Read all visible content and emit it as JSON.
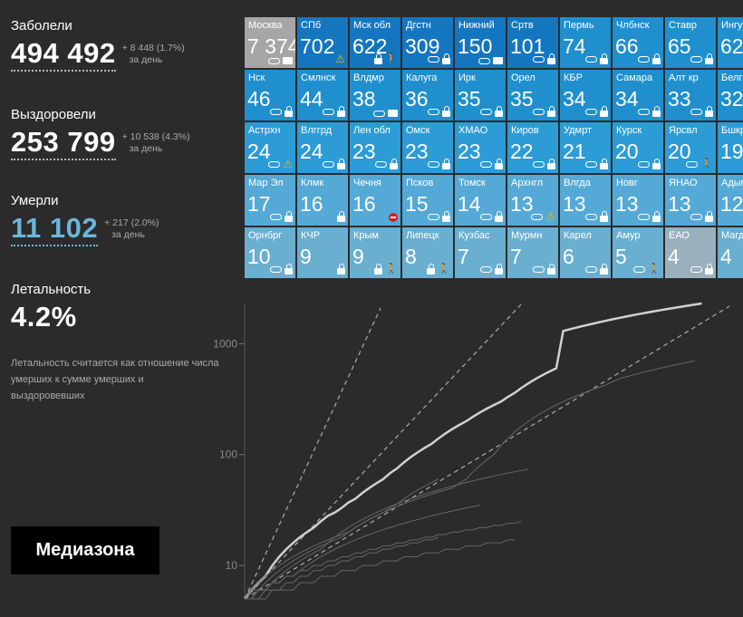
{
  "stats": [
    {
      "label": "Заболели",
      "value": "494 492",
      "delta": "+ 8 448 (1.7%)",
      "per": "за день",
      "color": "white"
    },
    {
      "label": "Выздоровели",
      "value": "253 799",
      "delta": "+ 10 538 (4.3%)",
      "per": "за день",
      "color": "white"
    },
    {
      "label": "Умерли",
      "value": "11 102",
      "delta": "+ 217 (2.0%)",
      "per": "за день",
      "color": "blue"
    }
  ],
  "mortality": {
    "label": "Летальность",
    "value": "4.2%",
    "note": "Летальность считается как отношение числа умерших к сумме умерших и выздоровевших"
  },
  "logo": "Медиазона",
  "colors": {
    "top": "#1576c0",
    "high": "#1f8fce",
    "mid": "#2d9bd6",
    "low": "#55a9d6",
    "lowest": "#6aaed0",
    "gray": "#a6a6a6",
    "ltgray": "#9ab0bd"
  },
  "regions": [
    {
      "name": "Москва",
      "value": "7 374",
      "color": "gray",
      "icons": [
        "mask",
        "card"
      ]
    },
    {
      "name": "СПб",
      "value": "702",
      "color": "top",
      "icons": [
        "warn"
      ]
    },
    {
      "name": "Мск обл",
      "value": "622",
      "color": "top",
      "icons": [
        "lock",
        "walk"
      ]
    },
    {
      "name": "Дгстн",
      "value": "309",
      "color": "top",
      "icons": [
        "mask",
        "lock"
      ]
    },
    {
      "name": "Нижний",
      "value": "150",
      "color": "top",
      "icons": [
        "mask",
        "card"
      ]
    },
    {
      "name": "Сртв",
      "value": "101",
      "color": "top",
      "icons": [
        "mask",
        "lock"
      ]
    },
    {
      "name": "Пермь",
      "value": "74",
      "color": "high",
      "icons": [
        "mask",
        "lock"
      ]
    },
    {
      "name": "Члбнск",
      "value": "66",
      "color": "high",
      "icons": [
        "mask",
        "lock"
      ]
    },
    {
      "name": "Ставр",
      "value": "65",
      "color": "high",
      "icons": [
        "mask",
        "lock"
      ]
    },
    {
      "name": "Ингуш",
      "value": "62",
      "color": "high",
      "icons": []
    },
    {
      "name": "Нск",
      "value": "46",
      "color": "high",
      "icons": [
        "mask",
        "lock"
      ]
    },
    {
      "name": "Смлнск",
      "value": "44",
      "color": "high",
      "icons": [
        "mask",
        "lock"
      ]
    },
    {
      "name": "Влдмр",
      "value": "38",
      "color": "high",
      "icons": [
        "mask",
        "card"
      ]
    },
    {
      "name": "Калуга",
      "value": "36",
      "color": "high",
      "icons": [
        "mask",
        "lock"
      ]
    },
    {
      "name": "Ирк",
      "value": "35",
      "color": "high",
      "icons": [
        "mask",
        "lock"
      ]
    },
    {
      "name": "Орел",
      "value": "35",
      "color": "high",
      "icons": [
        "mask",
        "lock"
      ]
    },
    {
      "name": "КБР",
      "value": "34",
      "color": "high",
      "icons": [
        "mask",
        "lock"
      ]
    },
    {
      "name": "Самара",
      "value": "34",
      "color": "high",
      "icons": [
        "mask",
        "lock"
      ]
    },
    {
      "name": "Алт кр",
      "value": "33",
      "color": "high",
      "icons": [
        "mask",
        "lock"
      ]
    },
    {
      "name": "Белгр",
      "value": "32",
      "color": "high",
      "icons": []
    },
    {
      "name": "Астрхн",
      "value": "24",
      "color": "mid",
      "icons": [
        "mask",
        "warn"
      ]
    },
    {
      "name": "Влггрд",
      "value": "24",
      "color": "mid",
      "icons": [
        "mask",
        "lock"
      ]
    },
    {
      "name": "Лен обл",
      "value": "23",
      "color": "mid",
      "icons": [
        "mask",
        "lock"
      ]
    },
    {
      "name": "Омск",
      "value": "23",
      "color": "mid",
      "icons": [
        "mask",
        "lock"
      ]
    },
    {
      "name": "ХМАО",
      "value": "23",
      "color": "mid",
      "icons": [
        "mask",
        "lock"
      ]
    },
    {
      "name": "Киров",
      "value": "22",
      "color": "mid",
      "icons": [
        "mask",
        "lock"
      ]
    },
    {
      "name": "Удмрт",
      "value": "21",
      "color": "mid",
      "icons": [
        "mask",
        "lock"
      ]
    },
    {
      "name": "Курск",
      "value": "20",
      "color": "mid",
      "icons": [
        "mask",
        "lock"
      ]
    },
    {
      "name": "Ярсвл",
      "value": "20",
      "color": "mid",
      "icons": [
        "mask",
        "walk"
      ]
    },
    {
      "name": "Бшкр",
      "value": "19",
      "color": "mid",
      "icons": []
    },
    {
      "name": "Мар Эл",
      "value": "17",
      "color": "low",
      "icons": [
        "mask",
        "lock"
      ]
    },
    {
      "name": "Клмк",
      "value": "16",
      "color": "low",
      "icons": [
        "lock"
      ]
    },
    {
      "name": "Чечня",
      "value": "16",
      "color": "low",
      "icons": [
        "stop"
      ]
    },
    {
      "name": "Псков",
      "value": "15",
      "color": "low",
      "icons": [
        "mask",
        "lock"
      ]
    },
    {
      "name": "Томск",
      "value": "14",
      "color": "low",
      "icons": [
        "mask",
        "lock"
      ]
    },
    {
      "name": "Архнгл",
      "value": "13",
      "color": "low",
      "icons": [
        "mask",
        "warn"
      ]
    },
    {
      "name": "Влгда",
      "value": "13",
      "color": "low",
      "icons": [
        "mask",
        "lock"
      ]
    },
    {
      "name": "Новг",
      "value": "13",
      "color": "low",
      "icons": [
        "mask",
        "lock"
      ]
    },
    {
      "name": "ЯНАО",
      "value": "13",
      "color": "low",
      "icons": [
        "mask",
        "lock"
      ]
    },
    {
      "name": "Адыг",
      "value": "12",
      "color": "low",
      "icons": []
    },
    {
      "name": "Орнбрг",
      "value": "10",
      "color": "lowest",
      "icons": [
        "mask",
        "lock"
      ]
    },
    {
      "name": "КЧР",
      "value": "9",
      "color": "lowest",
      "icons": [
        "lock"
      ]
    },
    {
      "name": "Крым",
      "value": "9",
      "color": "lowest",
      "icons": [
        "lock",
        "walk"
      ]
    },
    {
      "name": "Липецк",
      "value": "8",
      "color": "lowest",
      "icons": [
        "lock",
        "walk"
      ]
    },
    {
      "name": "Кузбас",
      "value": "7",
      "color": "lowest",
      "icons": [
        "mask",
        "lock"
      ]
    },
    {
      "name": "Мурмн",
      "value": "7",
      "color": "lowest",
      "icons": [
        "mask",
        "lock"
      ]
    },
    {
      "name": "Карел",
      "value": "6",
      "color": "lowest",
      "icons": [
        "mask",
        "lock"
      ]
    },
    {
      "name": "Амур",
      "value": "5",
      "color": "lowest",
      "icons": [
        "mask",
        "walk"
      ]
    },
    {
      "name": "ЕАО",
      "value": "4",
      "color": "ltgray",
      "icons": [
        "mask",
        "lock"
      ]
    },
    {
      "name": "Магд",
      "value": "4",
      "color": "lowest",
      "icons": []
    }
  ],
  "chart_data": {
    "type": "line",
    "title": "",
    "xlabel": "",
    "ylabel": "",
    "yscale": "log",
    "yticks": [
      10,
      100,
      1000
    ],
    "ylim": [
      5,
      2300
    ],
    "xlim": [
      0,
      70
    ],
    "grid": false,
    "series": [
      {
        "values": [
          5,
          6,
          7,
          8,
          10,
          12,
          14,
          16,
          18,
          20,
          22,
          25,
          28,
          30,
          33,
          37,
          40,
          45,
          50,
          55,
          60,
          68,
          75,
          85,
          95,
          105,
          115,
          125,
          140,
          155,
          170,
          185,
          200,
          220,
          240,
          260,
          280,
          300,
          330,
          360,
          400,
          440,
          480,
          520,
          560,
          600,
          1300,
          1350,
          1400,
          1450,
          1500,
          1550,
          1600,
          1650,
          1700,
          1750,
          1800,
          1850,
          1900,
          1950,
          2000,
          2050,
          2100,
          2150,
          2200,
          2250,
          2300
        ]
      },
      {
        "values": [
          5,
          5,
          6,
          6,
          7,
          8,
          9,
          10,
          11,
          12,
          13,
          14,
          16,
          18,
          20,
          22,
          24,
          26,
          28,
          30,
          32,
          34,
          36,
          38,
          40,
          42,
          44,
          46,
          48,
          50,
          52,
          54,
          56,
          58,
          60,
          62,
          64,
          66,
          68,
          70,
          72,
          74
        ]
      },
      {
        "values": [
          5,
          6,
          7,
          8,
          9,
          10,
          11,
          12,
          13,
          14,
          15,
          16,
          17,
          18,
          19,
          20,
          22,
          24,
          26,
          28,
          30,
          32,
          34,
          36,
          38,
          40,
          42,
          44,
          46,
          48,
          50,
          55,
          60,
          70,
          80,
          90,
          100,
          120,
          140,
          160,
          180,
          200,
          220,
          240,
          260,
          280,
          300,
          320,
          340,
          360,
          380,
          400,
          420,
          450,
          480,
          500,
          520,
          540,
          560,
          580,
          600,
          620,
          640,
          660,
          680,
          700
        ]
      },
      {
        "values": [
          5,
          5,
          6,
          6,
          7,
          7,
          8,
          8,
          9,
          10,
          11,
          12,
          13,
          14,
          15,
          16,
          17,
          18,
          19,
          20,
          21,
          22,
          23,
          24,
          25,
          26,
          27,
          28,
          29,
          30,
          31,
          32,
          33,
          34,
          35
        ]
      },
      {
        "values": [
          5,
          6,
          6,
          7,
          8,
          9,
          10,
          11,
          12,
          13,
          14,
          15,
          16,
          17,
          18,
          20,
          22,
          24,
          26,
          28,
          30,
          33,
          36,
          40,
          44,
          48,
          52,
          56,
          60
        ]
      },
      {
        "values": [
          5,
          5,
          5,
          6,
          6,
          6,
          7,
          7,
          8,
          8,
          9,
          9,
          10,
          10,
          11,
          11,
          12,
          12,
          13,
          13,
          14,
          14,
          15,
          15,
          16,
          16,
          17,
          17,
          18
        ]
      },
      {
        "values": [
          5,
          5,
          6,
          6,
          7,
          7,
          8,
          8,
          9,
          9,
          10,
          10,
          11,
          11,
          12,
          12,
          13,
          13,
          14,
          14,
          15,
          15,
          16,
          16,
          17,
          17,
          18,
          18,
          19,
          19,
          20,
          20,
          21,
          21,
          22,
          22,
          23,
          23,
          24,
          24,
          25
        ]
      },
      {
        "values": [
          5,
          5,
          5,
          5,
          6,
          6,
          6,
          6,
          7,
          7,
          7,
          8,
          8,
          8,
          9,
          9,
          9,
          10,
          10,
          10,
          11,
          11,
          11,
          12,
          12,
          12,
          13,
          13,
          13,
          14,
          14,
          14,
          15,
          15,
          15,
          16,
          16,
          16,
          17,
          17
        ]
      }
    ]
  }
}
